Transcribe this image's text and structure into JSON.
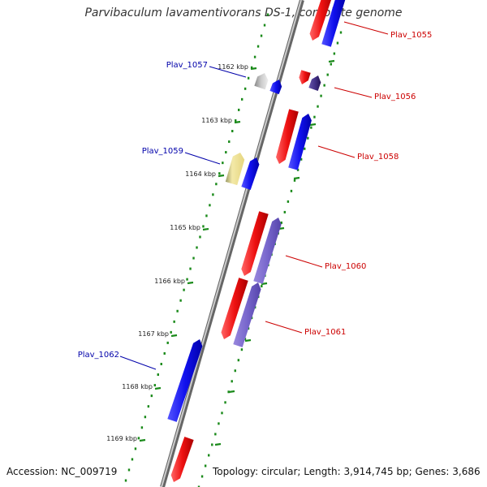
{
  "title": "Parvibaculum lavamentivorans DS-1, complete genome",
  "footer": {
    "accession": "Accession: NC_009719",
    "summary": "Topology: circular; Length: 3,914,745 bp; Genes: 3,686"
  },
  "colors": {
    "forward_gene": "#ee1111",
    "reverse_gene": "#1111ee",
    "reverse_gene_light": "#7766cc",
    "pale_gene": "#eedd88",
    "grey_gene": "#aaaaaa",
    "dark_gene": "#443388",
    "tick": "#1a8a1a",
    "backbone": "#777777",
    "forward_label": "#cc0000",
    "reverse_label": "#0000aa"
  },
  "kbp_ticks": [
    "1162 kbp",
    "1163 kbp",
    "1164 kbp",
    "1165 kbp",
    "1166 kbp",
    "1167 kbp",
    "1168 kbp",
    "1169 kbp"
  ],
  "gene_labels": [
    {
      "text": "Plav_1055",
      "strand": "forward"
    },
    {
      "text": "Plav_1057",
      "strand": "reverse"
    },
    {
      "text": "Plav_1056",
      "strand": "forward"
    },
    {
      "text": "Plav_1058",
      "strand": "forward"
    },
    {
      "text": "Plav_1059",
      "strand": "reverse"
    },
    {
      "text": "Plav_1060",
      "strand": "forward"
    },
    {
      "text": "Plav_1061",
      "strand": "forward"
    },
    {
      "text": "Plav_1062",
      "strand": "reverse"
    }
  ]
}
